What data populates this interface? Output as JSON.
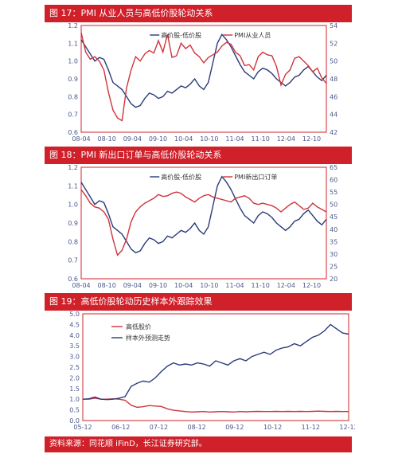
{
  "banners": {
    "fig17": "图 17：PMI 从业人员与高低价股轮动关系",
    "fig18": "图 18：PMI 新出口订单与高低价股轮动关系",
    "fig19": "图 19：高低价股轮动历史样本外跟踪效果",
    "source": "资料来源：同花顺 iFinD，长江证券研究部。"
  },
  "colors": {
    "navy": "#2a3b7a",
    "red": "#d0343c",
    "banner": "#d0202a",
    "frame": "#d0202a"
  },
  "chart_data": [
    {
      "type": "line",
      "title": "",
      "x_ticks": [
        "08-04",
        "08-10",
        "09-04",
        "09-10",
        "10-04",
        "10-10",
        "11-04",
        "11-10",
        "12-04",
        "12-10"
      ],
      "y_left_ticks": [
        "1.2",
        "1.1",
        "1.0",
        "0.9",
        "0.8",
        "0.7",
        "0.6"
      ],
      "y_right_ticks": [
        "54",
        "52",
        "50",
        "48",
        "46",
        "44",
        "42"
      ],
      "ylim_left": [
        0.6,
        1.2
      ],
      "ylim_right": [
        42,
        54
      ],
      "legend_position": "top-center",
      "series": [
        {
          "name": "高价股-低价股",
          "axis": "left",
          "color": "#2a3b7a",
          "x": [
            0,
            1,
            2,
            3,
            4,
            5,
            6,
            7,
            8,
            9,
            10,
            11,
            12,
            13,
            14,
            15,
            16,
            17,
            18,
            19,
            20,
            21,
            22,
            23,
            24,
            25,
            26,
            27,
            28,
            29,
            30,
            31,
            32,
            33,
            34,
            35,
            36,
            37,
            38,
            39,
            40,
            41,
            42,
            43,
            44,
            45,
            46,
            47,
            48,
            49,
            50,
            51,
            52,
            53,
            54
          ],
          "values": [
            1.12,
            1.08,
            1.04,
            1.0,
            1.02,
            1.01,
            0.95,
            0.88,
            0.86,
            0.84,
            0.8,
            0.76,
            0.74,
            0.75,
            0.79,
            0.82,
            0.81,
            0.79,
            0.8,
            0.83,
            0.82,
            0.84,
            0.86,
            0.85,
            0.87,
            0.9,
            0.86,
            0.84,
            0.88,
            0.99,
            1.1,
            1.15,
            1.12,
            1.08,
            1.03,
            0.98,
            0.94,
            0.92,
            0.9,
            0.94,
            0.96,
            0.95,
            0.93,
            0.9,
            0.88,
            0.86,
            0.88,
            0.91,
            0.92,
            0.95,
            0.97,
            0.94,
            0.91,
            0.89,
            0.92
          ]
        },
        {
          "name": "PMI从业人员",
          "axis": "right",
          "color": "#d0343c",
          "x": [
            0,
            1,
            2,
            3,
            4,
            5,
            6,
            7,
            8,
            9,
            10,
            11,
            12,
            13,
            14,
            15,
            16,
            17,
            18,
            19,
            20,
            21,
            22,
            23,
            24,
            25,
            26,
            27,
            28,
            29,
            30,
            31,
            32,
            33,
            34,
            35,
            36,
            37,
            38,
            39,
            40,
            41,
            42,
            43,
            44,
            45,
            46,
            47,
            48,
            49,
            50,
            51,
            52,
            53,
            54
          ],
          "values": [
            53.2,
            51.0,
            50.2,
            50.5,
            50.0,
            49.0,
            46.5,
            44.5,
            43.6,
            43.3,
            47.0,
            49.0,
            50.5,
            50.0,
            50.8,
            51.2,
            50.9,
            52.3,
            51.0,
            53.0,
            50.4,
            50.6,
            52.0,
            51.4,
            51.8,
            50.9,
            50.5,
            49.8,
            50.4,
            50.7,
            51.0,
            51.7,
            52.1,
            51.9,
            51.0,
            50.6,
            49.5,
            49.6,
            49.0,
            50.5,
            51.0,
            50.7,
            50.6,
            49.4,
            47.3,
            48.5,
            49.0,
            50.3,
            50.5,
            50.0,
            49.5,
            48.8,
            49.2,
            48.1,
            47.5
          ]
        }
      ]
    },
    {
      "type": "line",
      "title": "",
      "x_ticks": [
        "08-04",
        "08-10",
        "09-04",
        "09-10",
        "10-04",
        "10-10",
        "11-04",
        "11-10",
        "12-04",
        "12-10"
      ],
      "y_left_ticks": [
        "1.2",
        "1.1",
        "1.0",
        "0.9",
        "0.8",
        "0.7",
        "0.6"
      ],
      "y_right_ticks": [
        "65",
        "60",
        "55",
        "50",
        "45",
        "40",
        "35",
        "30",
        "25",
        "20"
      ],
      "ylim_left": [
        0.6,
        1.2
      ],
      "ylim_right": [
        20,
        65
      ],
      "legend_position": "top-center",
      "series": [
        {
          "name": "高价股-低价股",
          "axis": "left",
          "color": "#2a3b7a",
          "x": [
            0,
            1,
            2,
            3,
            4,
            5,
            6,
            7,
            8,
            9,
            10,
            11,
            12,
            13,
            14,
            15,
            16,
            17,
            18,
            19,
            20,
            21,
            22,
            23,
            24,
            25,
            26,
            27,
            28,
            29,
            30,
            31,
            32,
            33,
            34,
            35,
            36,
            37,
            38,
            39,
            40,
            41,
            42,
            43,
            44,
            45,
            46,
            47,
            48,
            49,
            50,
            51,
            52,
            53,
            54
          ],
          "values": [
            1.12,
            1.08,
            1.04,
            1.0,
            1.02,
            1.01,
            0.95,
            0.88,
            0.86,
            0.84,
            0.8,
            0.76,
            0.74,
            0.75,
            0.79,
            0.82,
            0.81,
            0.79,
            0.8,
            0.83,
            0.82,
            0.84,
            0.86,
            0.85,
            0.87,
            0.9,
            0.86,
            0.84,
            0.88,
            0.99,
            1.1,
            1.15,
            1.12,
            1.08,
            1.03,
            0.98,
            0.94,
            0.92,
            0.9,
            0.94,
            0.96,
            0.95,
            0.93,
            0.9,
            0.88,
            0.86,
            0.88,
            0.91,
            0.92,
            0.95,
            0.97,
            0.94,
            0.91,
            0.89,
            0.92
          ]
        },
        {
          "name": "PMI新出口订单",
          "axis": "right",
          "color": "#d0343c",
          "x": [
            0,
            1,
            2,
            3,
            4,
            5,
            6,
            7,
            8,
            9,
            10,
            11,
            12,
            13,
            14,
            15,
            16,
            17,
            18,
            19,
            20,
            21,
            22,
            23,
            24,
            25,
            26,
            27,
            28,
            29,
            30,
            31,
            32,
            33,
            34,
            35,
            36,
            37,
            38,
            39,
            40,
            41,
            42,
            43,
            44,
            45,
            46,
            47,
            48,
            49,
            50,
            51,
            52,
            53,
            54
          ],
          "values": [
            56.0,
            53.5,
            50.5,
            49.0,
            48.5,
            47.0,
            44.0,
            36.0,
            29.5,
            31.5,
            36.0,
            43.0,
            47.0,
            49.0,
            50.5,
            51.5,
            52.5,
            54.0,
            53.2,
            53.5,
            54.5,
            55.0,
            54.5,
            53.0,
            52.0,
            51.0,
            52.5,
            53.5,
            54.0,
            53.0,
            52.5,
            52.0,
            51.5,
            51.0,
            52.5,
            53.0,
            53.5,
            52.5,
            50.5,
            50.0,
            50.5,
            50.0,
            49.5,
            48.5,
            47.0,
            48.5,
            50.0,
            51.0,
            49.5,
            48.0,
            48.5,
            50.5,
            49.0,
            48.0,
            47.0
          ]
        }
      ]
    },
    {
      "type": "line",
      "title": "",
      "x_ticks": [
        "05-12",
        "06-12",
        "07-12",
        "08-12",
        "09-12",
        "10-12",
        "11-12",
        "12-12"
      ],
      "y_ticks": [
        "5.0",
        "4.5",
        "4.0",
        "3.5",
        "3.0",
        "2.5",
        "2.0",
        "1.5",
        "1.0",
        "0.5",
        "0.0"
      ],
      "ylim": [
        0,
        5
      ],
      "legend_position": "top-left",
      "series": [
        {
          "name": "高低股价",
          "color": "#d0343c",
          "x": [
            0,
            2,
            4,
            6,
            8,
            10,
            12,
            14,
            16,
            18,
            20,
            22,
            24,
            26,
            28,
            30,
            32,
            34,
            36,
            38,
            40,
            42,
            44,
            46,
            48,
            50,
            52,
            54,
            56,
            58,
            60,
            62,
            64,
            66,
            68,
            70,
            72,
            74,
            76,
            78,
            80,
            82,
            84,
            86,
            88
          ],
          "values": [
            1.0,
            1.0,
            1.05,
            1.0,
            1.0,
            1.02,
            1.0,
            0.95,
            0.72,
            0.62,
            0.65,
            0.7,
            0.68,
            0.66,
            0.55,
            0.48,
            0.45,
            0.42,
            0.4,
            0.41,
            0.42,
            0.4,
            0.41,
            0.42,
            0.41,
            0.4,
            0.42,
            0.41,
            0.42,
            0.43,
            0.42,
            0.42,
            0.43,
            0.42,
            0.43,
            0.42,
            0.43,
            0.42,
            0.43,
            0.44,
            0.43,
            0.42,
            0.43,
            0.42,
            0.42
          ]
        },
        {
          "name": "样本外预测走势",
          "color": "#2a3b7a",
          "x": [
            0,
            2,
            4,
            6,
            8,
            10,
            12,
            14,
            16,
            18,
            20,
            22,
            24,
            26,
            28,
            30,
            32,
            34,
            36,
            38,
            40,
            42,
            44,
            46,
            48,
            50,
            52,
            54,
            56,
            58,
            60,
            62,
            64,
            66,
            68,
            70,
            72,
            74,
            76,
            78,
            80,
            82,
            84,
            86,
            88
          ],
          "values": [
            1.0,
            1.02,
            1.1,
            1.0,
            0.98,
            1.0,
            1.05,
            1.12,
            1.6,
            1.75,
            1.85,
            1.8,
            2.0,
            2.3,
            2.55,
            2.7,
            2.6,
            2.65,
            2.6,
            2.7,
            2.65,
            2.55,
            2.8,
            2.7,
            2.6,
            2.8,
            2.9,
            2.8,
            3.0,
            3.1,
            3.2,
            3.1,
            3.3,
            3.4,
            3.45,
            3.6,
            3.5,
            3.7,
            3.9,
            4.0,
            4.2,
            4.5,
            4.3,
            4.1,
            4.05
          ]
        }
      ]
    }
  ]
}
